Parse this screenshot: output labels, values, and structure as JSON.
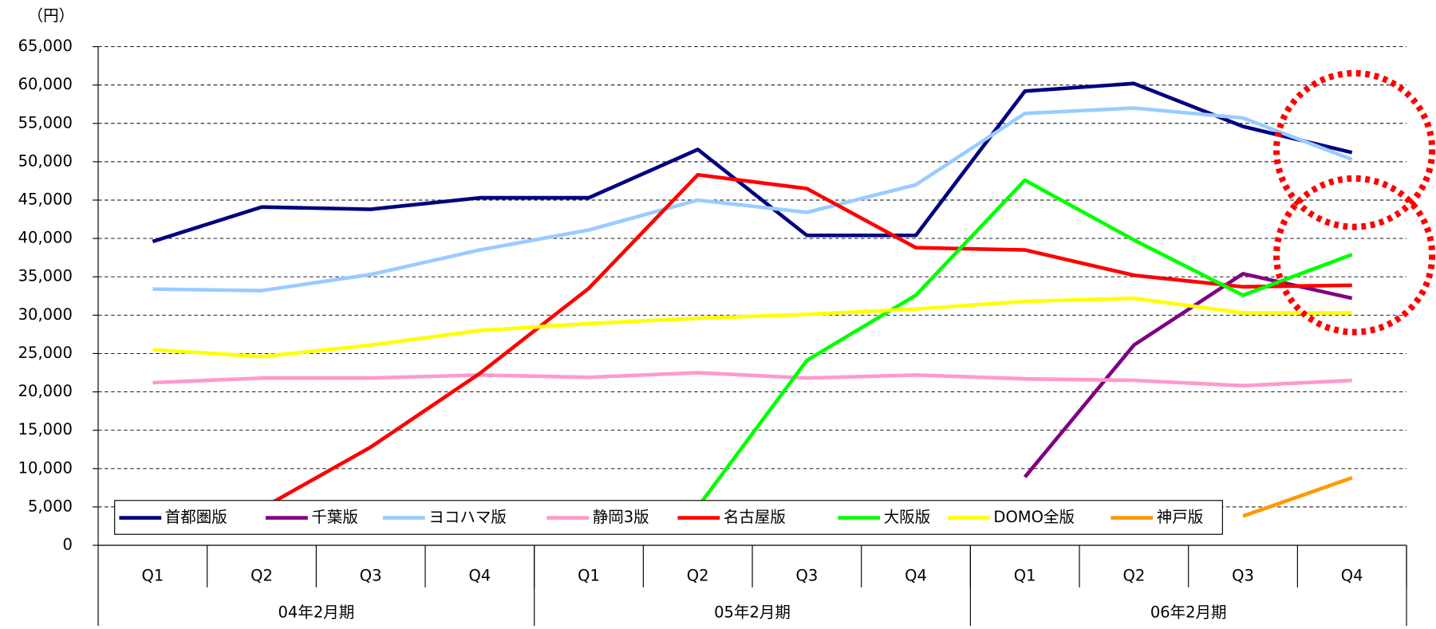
{
  "chart_data": {
    "type": "line",
    "y_unit": "（円）",
    "categories": [
      "Q1",
      "Q2",
      "Q3",
      "Q4",
      "Q1",
      "Q2",
      "Q3",
      "Q4",
      "Q1",
      "Q2",
      "Q3",
      "Q4"
    ],
    "category_groups": [
      "04年2月期",
      "05年2月期",
      "06年2月期"
    ],
    "ylim": [
      0,
      65000
    ],
    "yticks": [
      0,
      {
        "value": 5000,
        "label": "5,000"
      },
      {
        "value": 10000,
        "label": "10,000"
      },
      {
        "value": 15000,
        "label": "15,000"
      },
      {
        "value": 20000,
        "label": "20,000"
      },
      {
        "value": 25000,
        "label": "25,000"
      },
      {
        "value": 30000,
        "label": "30,000"
      },
      {
        "value": 35000,
        "label": "35,000"
      },
      {
        "value": 40000,
        "label": "40,000"
      },
      {
        "value": 45000,
        "label": "45,000"
      },
      {
        "value": 50000,
        "label": "50,000"
      },
      {
        "value": 55000,
        "label": "55,000"
      },
      {
        "value": 60000,
        "label": "60,000"
      },
      {
        "value": 65000,
        "label": "65,000"
      }
    ],
    "grid": true,
    "legend": "bottom",
    "series": [
      {
        "name": "首都圏版",
        "color": "#000080",
        "values": [
          39600,
          44100,
          43800,
          45300,
          45300,
          51600,
          40400,
          40400,
          59200,
          60200,
          54600,
          51200
        ]
      },
      {
        "name": "千葉版",
        "color": "#800080",
        "values": [
          null,
          null,
          null,
          null,
          null,
          null,
          null,
          null,
          8900,
          26100,
          35400,
          32200
        ]
      },
      {
        "name": "ヨコハマ版",
        "color": "#99ccff",
        "values": [
          33400,
          33200,
          35300,
          38500,
          41100,
          45000,
          43400,
          47000,
          56300,
          57000,
          55700,
          50300
        ]
      },
      {
        "name": "静岡3版",
        "color": "#ff99cc",
        "values": [
          21200,
          21800,
          21800,
          22200,
          21900,
          22500,
          21800,
          22200,
          21700,
          21500,
          20800,
          21500
        ]
      },
      {
        "name": "名古屋版",
        "color": "#ff0000",
        "values": [
          null,
          4800,
          12800,
          22400,
          33500,
          48300,
          46500,
          38800,
          38500,
          35200,
          33700,
          33900
        ]
      },
      {
        "name": "大阪版",
        "color": "#00ff00",
        "values": [
          null,
          null,
          null,
          null,
          null,
          5000,
          24100,
          32600,
          47600,
          39800,
          32600,
          37900
        ]
      },
      {
        "name": "DOMO全版",
        "color": "#ffff00",
        "values": [
          25500,
          24600,
          26100,
          28000,
          28900,
          29600,
          30100,
          30800,
          31800,
          32200,
          30300,
          30300
        ]
      },
      {
        "name": "神戸版",
        "color": "#ff9900",
        "values": [
          null,
          null,
          null,
          null,
          null,
          null,
          null,
          null,
          null,
          null,
          3800,
          8800
        ]
      }
    ]
  }
}
